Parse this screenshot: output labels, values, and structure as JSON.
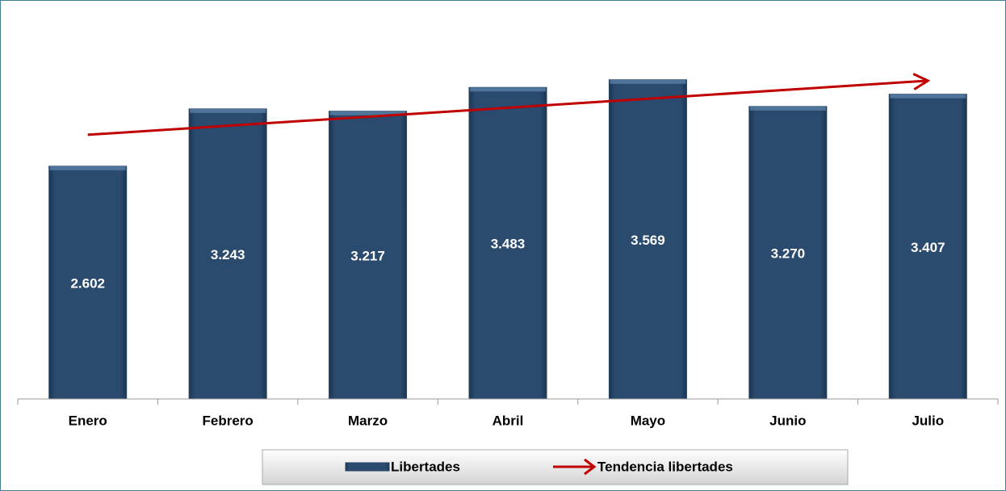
{
  "chart_data": {
    "type": "bar",
    "categories": [
      "Enero",
      "Febrero",
      "Marzo",
      "Abril",
      "Mayo",
      "Junio",
      "Julio"
    ],
    "series": [
      {
        "name": "Libertades",
        "color": "#264466",
        "values": [
          2602,
          3243,
          3217,
          3483,
          3569,
          3270,
          3407
        ],
        "value_labels": [
          "2.602",
          "3.243",
          "3.217",
          "3.483",
          "3.569",
          "3.270",
          "3.407"
        ]
      }
    ],
    "trendline": {
      "name": "Tendencia libertades",
      "color": "#c00000"
    },
    "ylim": [
      0,
      4000
    ]
  }
}
